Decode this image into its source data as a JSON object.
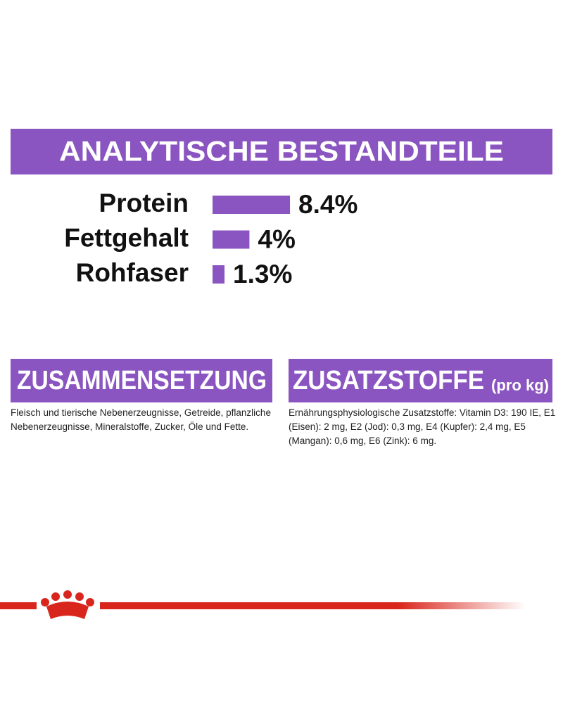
{
  "chart_data": {
    "type": "bar",
    "title": "ANALYTISCHE BESTANDTEILE",
    "categories": [
      "Protein",
      "Fettgehalt",
      "Rohfaser"
    ],
    "values": [
      8.4,
      4,
      1.3
    ],
    "value_labels": [
      "8.4%",
      "4%",
      "1.3%"
    ],
    "color": "#8a55c0"
  },
  "sections": [
    {
      "title": "ZUSAMMENSETZUNG",
      "text": "Fleisch und tierische Nebenerzeugnisse, Getreide, pflanzliche Nebenerzeugnisse, Mineralstoffe, Zucker, Öle und Fette."
    },
    {
      "title": "ZUSATZSTOFFE",
      "title_note": "(pro kg)",
      "text": "Ernährungsphysiologische Zusatzstoffe: Vitamin D3: 190 IE, E1 (Eisen): 2 mg, E2 (Jod): 0,3 mg, E4 (Kupfer): 2,4 mg, E5 (Mangan): 0,6 mg, E6 (Zink): 6 mg."
    }
  ]
}
